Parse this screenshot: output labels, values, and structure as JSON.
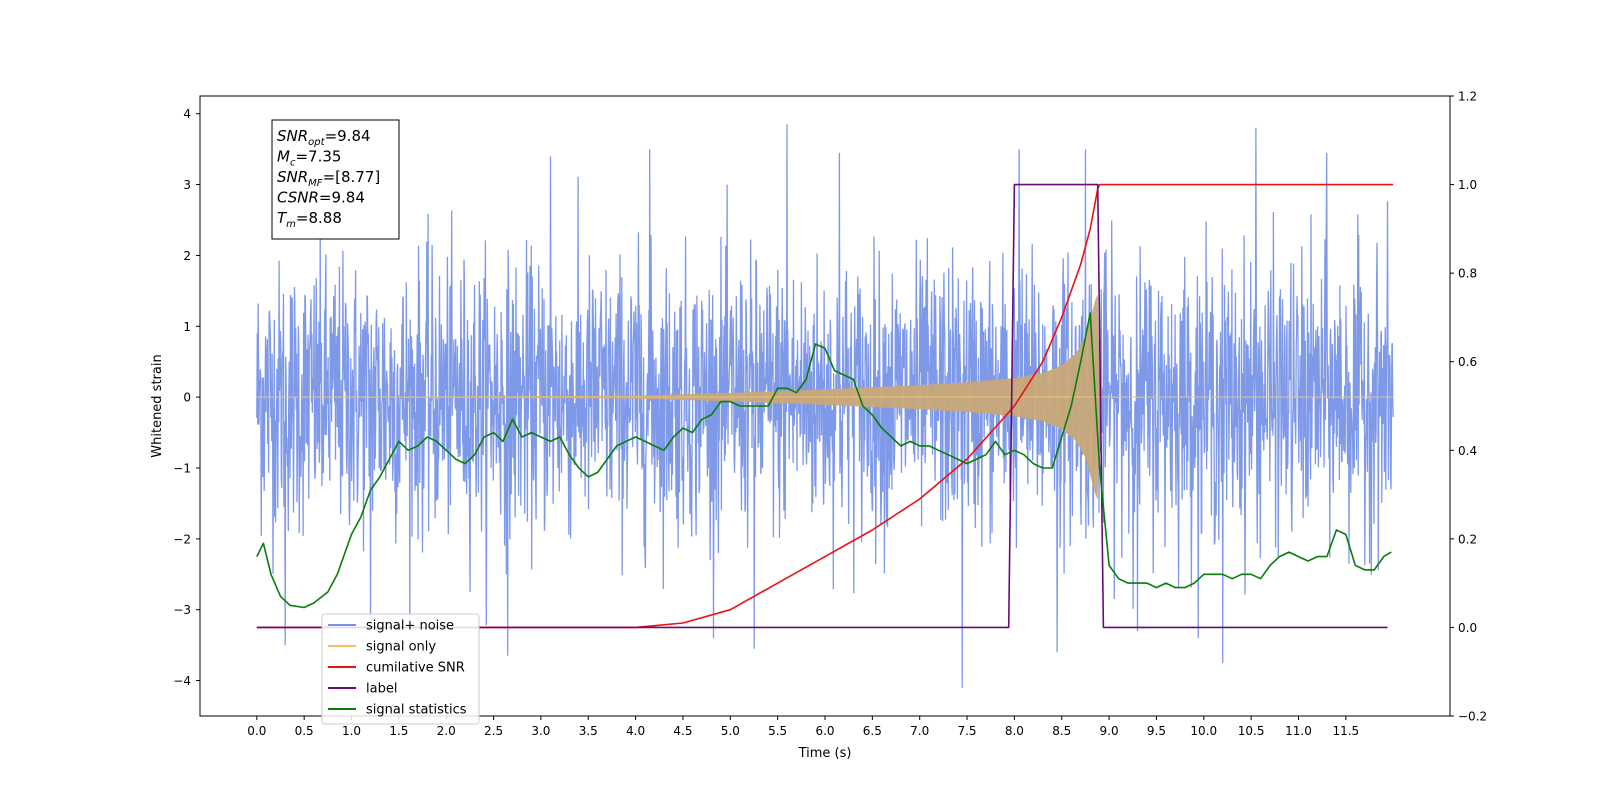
{
  "chart_data": {
    "type": "line",
    "xlabel": "Time (s)",
    "ylabel": "Whitened strain",
    "xlim": [
      -0.6,
      12.6
    ],
    "ylim": [
      -4.5,
      4.25
    ],
    "y2lim": [
      -0.2,
      1.2
    ],
    "x_ticks": [
      0.0,
      0.5,
      1.0,
      1.5,
      2.0,
      2.5,
      3.0,
      3.5,
      4.0,
      4.5,
      5.0,
      5.5,
      6.0,
      6.5,
      7.0,
      7.5,
      8.0,
      8.5,
      9.0,
      9.5,
      10.0,
      10.5,
      11.0,
      11.5
    ],
    "x_tick_labels": [
      "0.0",
      "0.5",
      "1.0",
      "1.5",
      "2.0",
      "2.5",
      "3.0",
      "3.5",
      "4.0",
      "4.5",
      "5.0",
      "5.5",
      "6.0",
      "6.5",
      "7.0",
      "7.5",
      "8.0",
      "8.5",
      "9.0",
      "9.5",
      "10.0",
      "10.5",
      "11.0",
      "11.5"
    ],
    "y_ticks": [
      -4,
      -3,
      -2,
      -1,
      0,
      1,
      2,
      3,
      4
    ],
    "y_tick_labels": [
      "−4",
      "−3",
      "−2",
      "−1",
      "0",
      "1",
      "2",
      "3",
      "4"
    ],
    "y2_ticks": [
      -0.2,
      0.0,
      0.2,
      0.4,
      0.6,
      0.8,
      1.0,
      1.2
    ],
    "y2_tick_labels": [
      "−0.2",
      "0.0",
      "0.2",
      "0.4",
      "0.6",
      "0.8",
      "1.0",
      "1.2"
    ],
    "grid": false,
    "legend_position": "lower-left",
    "annotation": {
      "lines": [
        {
          "name": "SNR",
          "sub": "opt",
          "value": "=9.84"
        },
        {
          "name": "M",
          "sub": "c",
          "value": "=7.35"
        },
        {
          "name": "SNR",
          "sub": "MF",
          "value": "=[8.77]"
        },
        {
          "name": "CSNR",
          "sub": "",
          "value": "=9.84"
        },
        {
          "name": "T",
          "sub": "m",
          "value": "=8.88"
        }
      ]
    },
    "series": [
      {
        "name": "signal+ noise",
        "color": "#7893e8",
        "axis": "left",
        "x_range": [
          0.0,
          12.0
        ],
        "envelope_upper": 2.0,
        "envelope_lower": -2.0,
        "spikes": [
          {
            "x": 0.3,
            "y": -3.5
          },
          {
            "x": 2.65,
            "y": -3.65
          },
          {
            "x": 3.1,
            "y": 3.4
          },
          {
            "x": 4.15,
            "y": 3.5
          },
          {
            "x": 5.25,
            "y": -3.55
          },
          {
            "x": 5.6,
            "y": 3.85
          },
          {
            "x": 6.15,
            "y": 3.45
          },
          {
            "x": 7.45,
            "y": -4.1
          },
          {
            "x": 8.05,
            "y": 3.5
          },
          {
            "x": 8.75,
            "y": 3.5
          },
          {
            "x": 9.3,
            "y": -3.3
          },
          {
            "x": 10.2,
            "y": -3.75
          },
          {
            "x": 10.55,
            "y": 3.8
          },
          {
            "x": 11.3,
            "y": 3.45
          },
          {
            "x": 8.45,
            "y": -3.6
          },
          {
            "x": 1.2,
            "y": -3.1
          }
        ]
      },
      {
        "name": "signal only",
        "color": "#f5c06b",
        "fill_color": "#c8a878",
        "axis": "left",
        "x_range": [
          0.0,
          12.0
        ],
        "envelope_x": [
          0.0,
          4.0,
          5.0,
          6.0,
          7.0,
          7.5,
          8.0,
          8.3,
          8.5,
          8.65,
          8.75,
          8.82,
          8.86,
          8.88,
          8.9
        ],
        "envelope_amp": [
          0.0,
          0.02,
          0.06,
          0.11,
          0.17,
          0.21,
          0.27,
          0.34,
          0.45,
          0.62,
          0.85,
          1.2,
          1.4,
          1.45,
          0.0
        ]
      },
      {
        "name": "cumilative SNR",
        "color": "#ee1111",
        "axis": "right",
        "x": [
          0.0,
          3.0,
          4.0,
          4.5,
          5.0,
          5.5,
          6.0,
          6.5,
          7.0,
          7.5,
          8.0,
          8.3,
          8.5,
          8.7,
          8.8,
          8.88,
          8.9,
          12.0
        ],
        "y": [
          0.0,
          0.0,
          0.0,
          0.01,
          0.04,
          0.1,
          0.16,
          0.22,
          0.29,
          0.38,
          0.5,
          0.6,
          0.7,
          0.82,
          0.9,
          0.99,
          1.0,
          1.0
        ]
      },
      {
        "name": "label",
        "color": "#6a0a7a",
        "axis": "right",
        "x": [
          0.0,
          7.94,
          8.0,
          8.88,
          8.94,
          11.94
        ],
        "y": [
          0.0,
          0.0,
          1.0,
          1.0,
          0.0,
          0.0
        ]
      },
      {
        "name": "signal statistics",
        "color": "#0a7d0a",
        "axis": "right",
        "x": [
          0.0,
          0.07,
          0.15,
          0.25,
          0.35,
          0.5,
          0.6,
          0.75,
          0.85,
          1.0,
          1.1,
          1.2,
          1.3,
          1.4,
          1.5,
          1.6,
          1.7,
          1.8,
          1.9,
          2.0,
          2.1,
          2.2,
          2.3,
          2.4,
          2.5,
          2.6,
          2.7,
          2.8,
          2.9,
          3.0,
          3.1,
          3.2,
          3.3,
          3.4,
          3.5,
          3.6,
          3.7,
          3.8,
          3.9,
          4.0,
          4.1,
          4.2,
          4.3,
          4.4,
          4.5,
          4.6,
          4.7,
          4.8,
          4.9,
          5.0,
          5.1,
          5.2,
          5.3,
          5.4,
          5.5,
          5.6,
          5.7,
          5.8,
          5.9,
          6.0,
          6.1,
          6.2,
          6.3,
          6.4,
          6.5,
          6.6,
          6.7,
          6.8,
          6.9,
          7.0,
          7.1,
          7.2,
          7.3,
          7.4,
          7.5,
          7.6,
          7.7,
          7.8,
          7.9,
          8.0,
          8.1,
          8.2,
          8.3,
          8.4,
          8.5,
          8.6,
          8.7,
          8.8,
          8.9,
          9.0,
          9.1,
          9.2,
          9.3,
          9.4,
          9.5,
          9.6,
          9.7,
          9.8,
          9.9,
          10.0,
          10.1,
          10.2,
          10.3,
          10.4,
          10.5,
          10.6,
          10.7,
          10.8,
          10.9,
          11.0,
          11.1,
          11.2,
          11.3,
          11.4,
          11.5,
          11.6,
          11.7,
          11.8,
          11.9,
          11.98
        ],
        "y": [
          0.16,
          0.19,
          0.12,
          0.07,
          0.05,
          0.045,
          0.055,
          0.08,
          0.12,
          0.21,
          0.25,
          0.31,
          0.34,
          0.38,
          0.42,
          0.4,
          0.41,
          0.43,
          0.42,
          0.4,
          0.38,
          0.37,
          0.39,
          0.43,
          0.44,
          0.42,
          0.47,
          0.43,
          0.44,
          0.43,
          0.42,
          0.43,
          0.39,
          0.36,
          0.34,
          0.35,
          0.38,
          0.41,
          0.42,
          0.43,
          0.42,
          0.41,
          0.4,
          0.43,
          0.45,
          0.44,
          0.47,
          0.48,
          0.51,
          0.51,
          0.5,
          0.5,
          0.5,
          0.5,
          0.54,
          0.54,
          0.53,
          0.56,
          0.64,
          0.63,
          0.58,
          0.57,
          0.56,
          0.5,
          0.48,
          0.45,
          0.43,
          0.41,
          0.42,
          0.41,
          0.41,
          0.4,
          0.39,
          0.38,
          0.37,
          0.38,
          0.39,
          0.42,
          0.39,
          0.4,
          0.39,
          0.37,
          0.36,
          0.36,
          0.43,
          0.5,
          0.6,
          0.71,
          0.36,
          0.14,
          0.11,
          0.1,
          0.1,
          0.1,
          0.09,
          0.1,
          0.09,
          0.09,
          0.1,
          0.12,
          0.12,
          0.12,
          0.11,
          0.12,
          0.12,
          0.11,
          0.14,
          0.16,
          0.17,
          0.16,
          0.15,
          0.16,
          0.16,
          0.22,
          0.21,
          0.14,
          0.13,
          0.13,
          0.16,
          0.17
        ]
      }
    ]
  }
}
